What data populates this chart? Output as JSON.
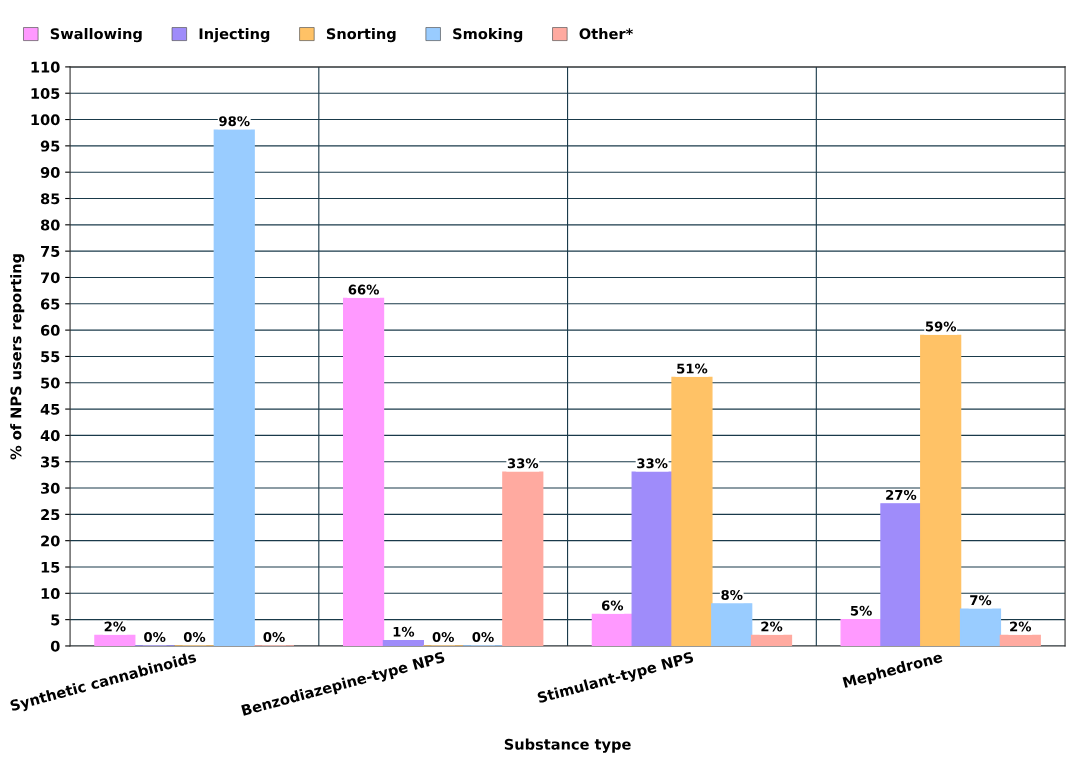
{
  "chart_data": {
    "type": "bar",
    "xlabel": "Substance type",
    "ylabel": "% of NPS users reporting",
    "categories": [
      "Synthetic cannabinoids",
      "Benzodiazepine-type NPS",
      "Stimulant-type NPS",
      "Mephedrone"
    ],
    "series": [
      {
        "name": "Swallowing",
        "color": "#ff99ff",
        "values": [
          2,
          66,
          6,
          5
        ],
        "value_labels": [
          "2%",
          "66%",
          "6%",
          "5%"
        ]
      },
      {
        "name": "Injecting",
        "color": "#9f8cfa",
        "values": [
          0,
          1,
          33,
          27
        ],
        "value_labels": [
          "0%",
          "1%",
          "33%",
          "27%"
        ]
      },
      {
        "name": "Snorting",
        "color": "#ffc266",
        "values": [
          0,
          0,
          51,
          59
        ],
        "value_labels": [
          "0%",
          "0%",
          "51%",
          "59%"
        ]
      },
      {
        "name": "Smoking",
        "color": "#99ccff",
        "values": [
          98,
          0,
          8,
          7
        ],
        "value_labels": [
          "98%",
          "0%",
          "8%",
          "7%"
        ]
      },
      {
        "name": "Other*",
        "color": "#ffaaa0",
        "values": [
          0,
          33,
          2,
          2
        ],
        "value_labels": [
          "0%",
          "33%",
          "2%",
          "2%"
        ]
      }
    ],
    "ylim": [
      0,
      110
    ],
    "yticks": [
      0,
      5,
      10,
      15,
      20,
      25,
      30,
      35,
      40,
      45,
      50,
      55,
      60,
      65,
      70,
      75,
      80,
      85,
      90,
      95,
      100,
      105,
      110
    ],
    "grid": true,
    "legend": "top left"
  }
}
